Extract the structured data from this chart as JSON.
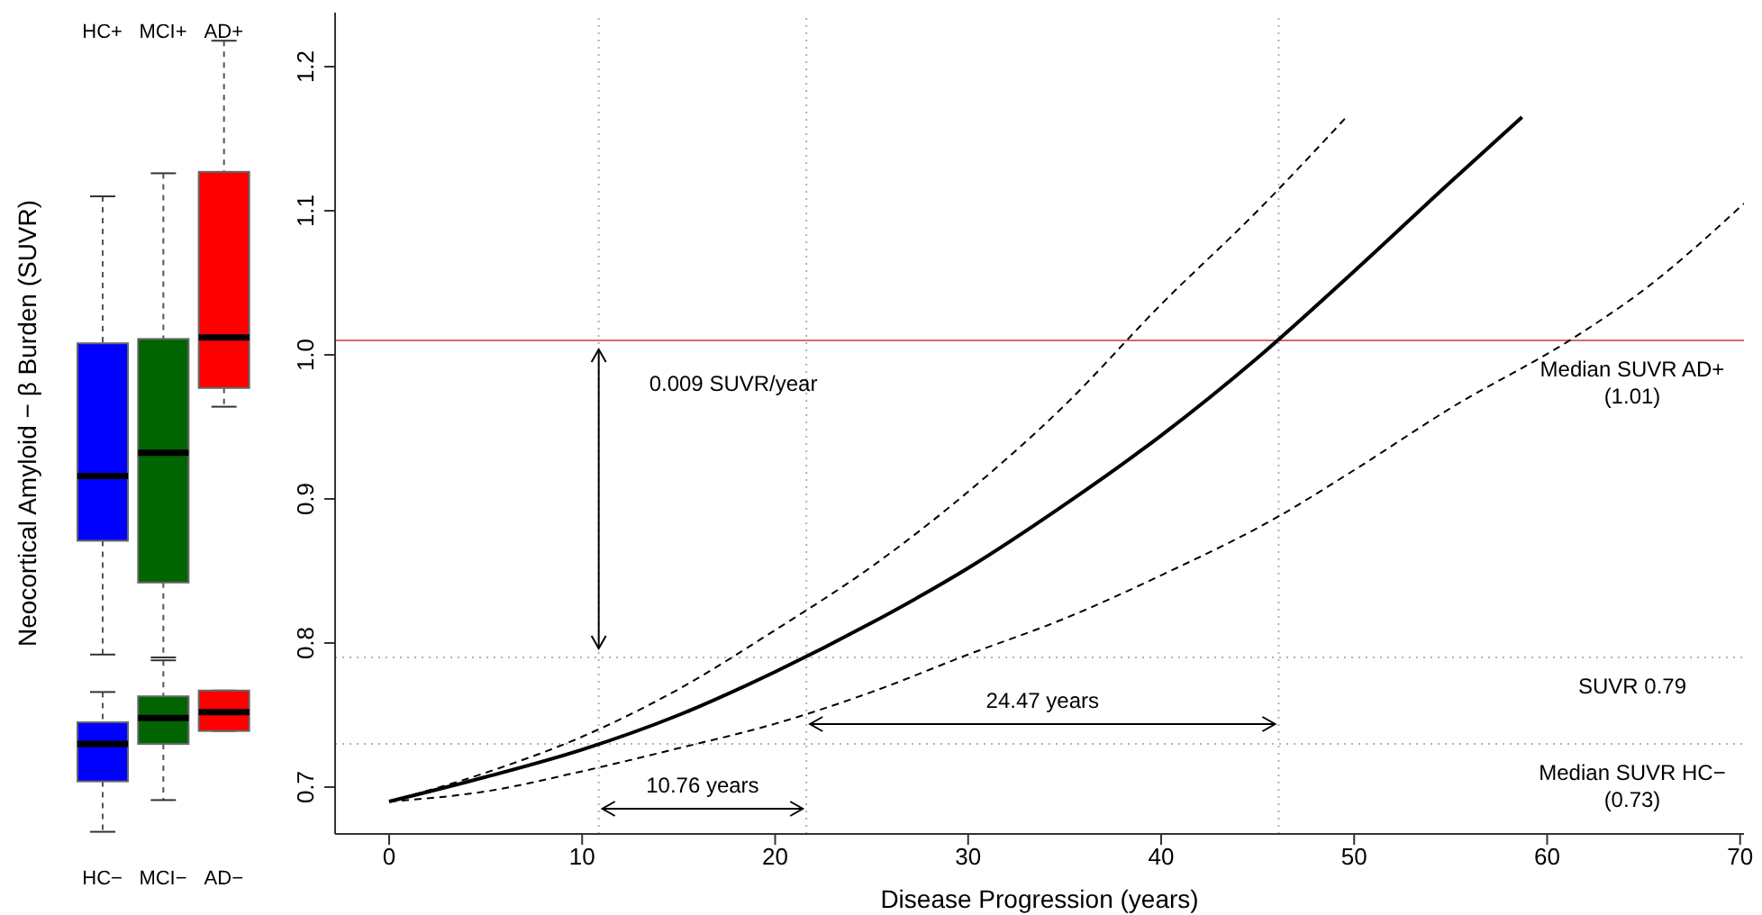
{
  "chart_data": [
    {
      "type": "box",
      "ylabel": "Neocortical Amyloid − β Burden (SUVR)",
      "categories": [
        "HC−",
        "MCI−",
        "AD−"
      ],
      "yticks": [
        0.7,
        0.8,
        0.9,
        1.1,
        1.2
      ],
      "tick_labels": "x",
      "annotations": [
        "HC+",
        "MCI+",
        "AD+"
      ],
      "series": [
        {
          "colors": [
            "#0000ff",
            "#006400",
            "#ff0000"
          ],
          "boxes": [
            {
              "low": 0.792,
              "q1": 0.871,
              "median": 0.916,
              "q3": 1.008,
              "high": 1.11
            },
            {
              "low": 0.79,
              "q1": 0.842,
              "median": 0.932,
              "q3": 1.011,
              "high": 1.126
            },
            {
              "low": 0.964,
              "q1": 0.977,
              "median": 1.012,
              "q3": 1.127,
              "high": 1.218
            }
          ]
        },
        {
          "colors": [
            "#0000ff",
            "#006400",
            "#ff0000"
          ],
          "boxes": [
            {
              "low": 0.669,
              "q1": 0.704,
              "median": 0.73,
              "q3": 0.745,
              "high": 0.766
            },
            {
              "low": 0.691,
              "q1": 0.73,
              "median": 0.748,
              "q3": 0.763,
              "high": 0.788
            },
            {
              "low": 0.739,
              "q1": 0.739,
              "median": 0.752,
              "q3": 0.767,
              "high": 0.767
            }
          ]
        }
      ]
    },
    {
      "type": "line",
      "xlabel": "Disease Progression (years)",
      "xlim": [
        -2.8,
        70.2
      ],
      "xticks": [
        0,
        10,
        20,
        30,
        40,
        50,
        60,
        70
      ],
      "ylim": [
        0.6675,
        1.2375
      ],
      "yticks": [
        0.7,
        0.8,
        0.9,
        {
          "value": 1.0,
          "label": "1.0"
        },
        1.1,
        1.2
      ],
      "marker": "none",
      "series": [
        {
          "color": "#000000",
          "line_style": "solid",
          "x": [
            0,
            5,
            10,
            15,
            20,
            25,
            30,
            35,
            40,
            45,
            50,
            55,
            58.7
          ],
          "values": [
            0.69,
            0.707,
            0.726,
            0.75,
            0.78,
            0.814,
            0.852,
            0.896,
            0.944,
            0.998,
            1.058,
            1.12,
            1.165
          ]
        },
        {
          "color": "#000000",
          "line_style": "dashed",
          "x": [
            0,
            5,
            10,
            15,
            20,
            25,
            30,
            35,
            40,
            45,
            49.6
          ],
          "values": [
            0.69,
            0.71,
            0.735,
            0.768,
            0.809,
            0.853,
            0.905,
            0.965,
            1.035,
            1.1,
            1.165
          ]
        },
        {
          "color": "#000000",
          "line_style": "dashed",
          "x": [
            0,
            5,
            10,
            15,
            20,
            25,
            30,
            35,
            40,
            46.1,
            50,
            55,
            61.4,
            65,
            70.2
          ],
          "values": [
            0.69,
            0.697,
            0.711,
            0.727,
            0.744,
            0.766,
            0.792,
            0.817,
            0.847,
            0.888,
            0.92,
            0.963,
            1.012,
            1.045,
            1.105
          ]
        }
      ],
      "ref_lines": [
        {
          "axis": "y",
          "value": 1.01,
          "label": "Median SUVR AD+\n(1.01)",
          "color": "#d46a6a",
          "line_style": "solid"
        },
        {
          "axis": "y",
          "value": 0.79,
          "label": "SUVR 0.79",
          "color": "#aab0cc",
          "line_style": "dotted"
        },
        {
          "axis": "y",
          "value": 0.73,
          "label": "Median SUVR HC−\n(0.73)",
          "color": "#aab0cc",
          "line_style": "dotted"
        },
        {
          "axis": "x",
          "value": 10.86,
          "color": "#aab0cc",
          "line_style": "dotted"
        },
        {
          "axis": "x",
          "value": 21.62,
          "color": "#aab0cc",
          "line_style": "dotted"
        },
        {
          "axis": "x",
          "value": 46.09,
          "color": "#aab0cc",
          "line_style": "dotted"
        }
      ],
      "annotations": [
        "0.009 SUVR/year",
        "10.76 years",
        "24.47 years"
      ]
    }
  ]
}
